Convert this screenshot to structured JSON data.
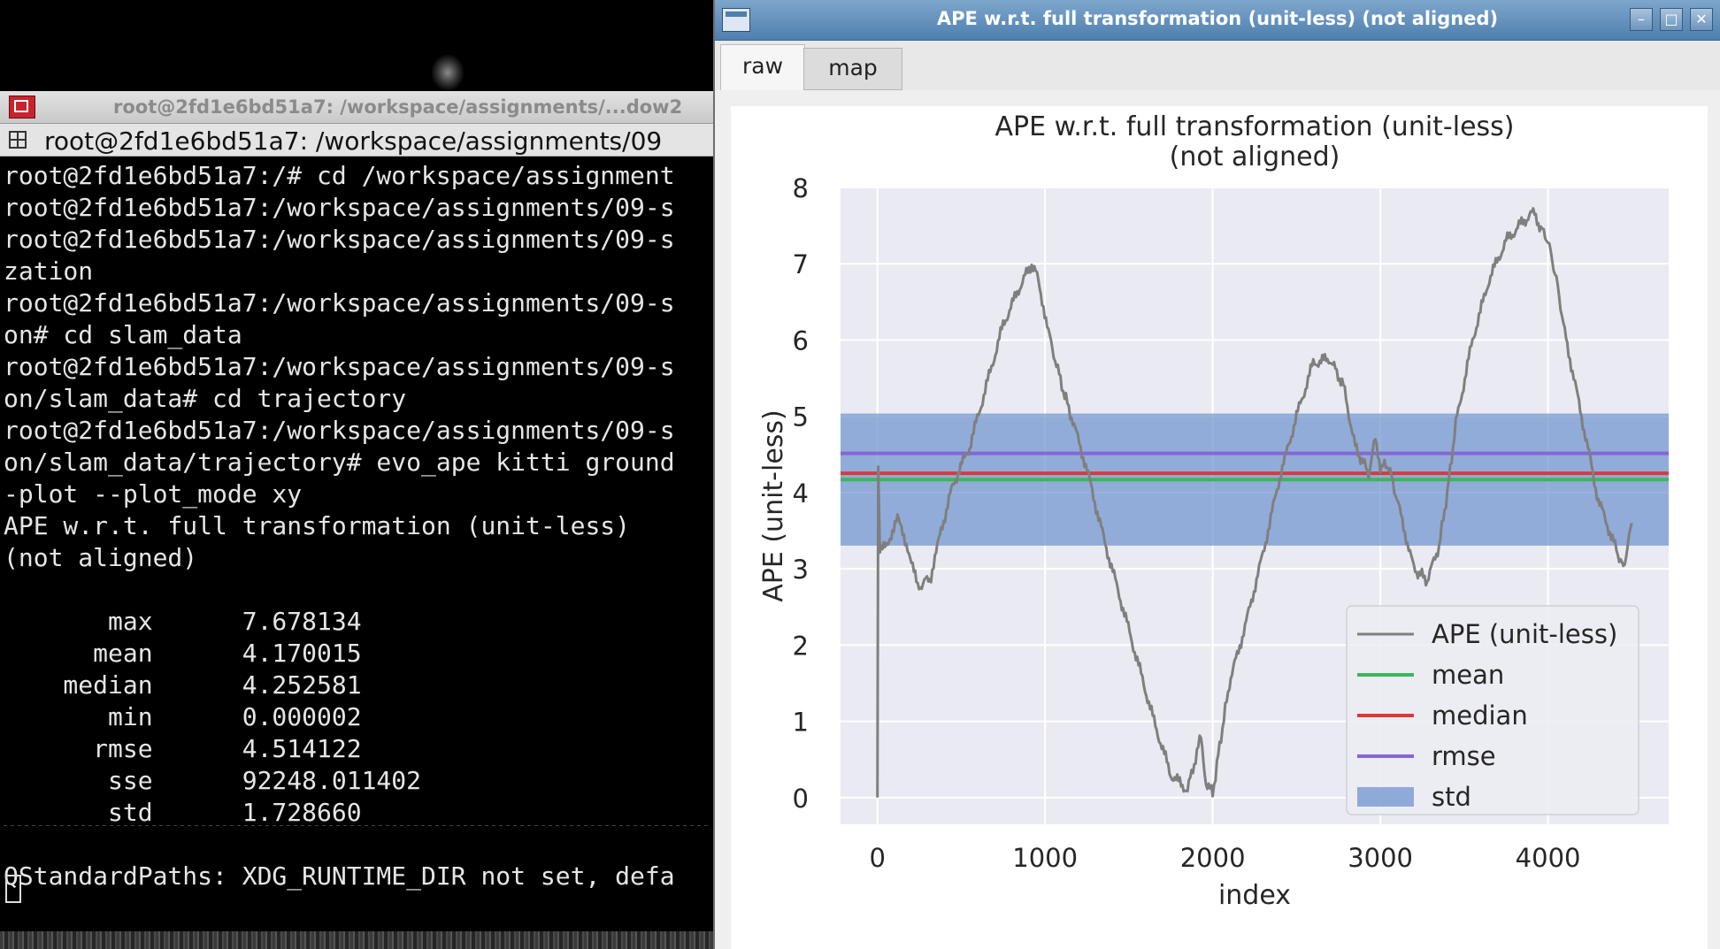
{
  "terminal": {
    "title": "root@2fd1e6bd51a7: /workspace/assignments/...dow2",
    "tab_label": "root@2fd1e6bd51a7: /workspace/assignments/09",
    "lines": [
      "root@2fd1e6bd51a7:/# cd /workspace/assignment",
      "root@2fd1e6bd51a7:/workspace/assignments/09-s",
      "root@2fd1e6bd51a7:/workspace/assignments/09-s",
      "zation",
      "root@2fd1e6bd51a7:/workspace/assignments/09-s",
      "on# cd slam_data",
      "root@2fd1e6bd51a7:/workspace/assignments/09-s",
      "on/slam_data# cd trajectory",
      "root@2fd1e6bd51a7:/workspace/assignments/09-s",
      "on/slam_data/trajectory# evo_ape kitti ground",
      "-plot --plot_mode xy",
      "APE w.r.t. full transformation (unit-less)",
      "(not aligned)",
      "",
      "       max      7.678134",
      "      mean      4.170015",
      "    median      4.252581",
      "       min      0.000002",
      "      rmse      4.514122",
      "       sse      92248.011402",
      "       std      1.728660",
      "",
      "QStandardPaths: XDG_RUNTIME_DIR not set, defa"
    ]
  },
  "plot_window": {
    "title": "APE w.r.t. full transformation (unit-less) (not aligned)",
    "tabs": [
      "raw",
      "map"
    ],
    "active_tab": "raw",
    "buttons": {
      "minimize": "–",
      "maximize": "□",
      "close": "✕"
    }
  },
  "chart_data": {
    "type": "line",
    "title": "APE w.r.t. full transformation (unit-less)\n(not aligned)",
    "title_lines": [
      "APE w.r.t. full transformation (unit-less)",
      "(not aligned)"
    ],
    "xlabel": "index",
    "ylabel": "APE (unit-less)",
    "xlim": [
      -220,
      4720
    ],
    "ylim": [
      -0.35,
      8.0
    ],
    "xticks": [
      0,
      1000,
      2000,
      3000,
      4000
    ],
    "yticks": [
      0,
      1,
      2,
      3,
      4,
      5,
      6,
      7,
      8
    ],
    "grid": true,
    "legend_position": "bottom-right",
    "colors": {
      "ape": "#7f7f7f",
      "mean": "#3cb65b",
      "median": "#d93a3a",
      "rmse": "#8467d7",
      "std": "#7094cf",
      "plot_bg": "#eaeaf2",
      "grid": "#ffffff"
    },
    "series": [
      {
        "name": "APE (unit-less)",
        "x": [
          0,
          5,
          15,
          60,
          120,
          180,
          240,
          320,
          380,
          450,
          550,
          650,
          750,
          850,
          920,
          960,
          1020,
          1100,
          1150,
          1250,
          1350,
          1450,
          1550,
          1650,
          1750,
          1850,
          1930,
          1960,
          2000,
          2050,
          2100,
          2200,
          2300,
          2400,
          2500,
          2600,
          2700,
          2780,
          2850,
          2930,
          2970,
          3000,
          3050,
          3100,
          3200,
          3280,
          3350,
          3400,
          3450,
          3550,
          3650,
          3750,
          3850,
          3920,
          3950,
          4000,
          4050,
          4100,
          4200,
          4300,
          4400,
          4450,
          4500
        ],
        "y": [
          0.0,
          4.35,
          3.2,
          3.35,
          3.65,
          3.3,
          2.75,
          2.9,
          3.5,
          4.1,
          4.6,
          5.4,
          6.2,
          6.7,
          7.0,
          6.8,
          6.1,
          5.4,
          5.05,
          4.3,
          3.4,
          2.6,
          1.8,
          1.0,
          0.3,
          0.1,
          0.8,
          0.2,
          0.05,
          0.8,
          1.5,
          2.3,
          3.2,
          4.2,
          5.0,
          5.7,
          5.75,
          5.4,
          4.6,
          4.25,
          4.7,
          4.35,
          4.35,
          3.9,
          3.0,
          2.85,
          3.3,
          4.0,
          4.9,
          6.0,
          6.8,
          7.3,
          7.55,
          7.68,
          7.5,
          7.3,
          6.8,
          6.1,
          5.0,
          3.9,
          3.3,
          3.0,
          3.6
        ]
      },
      {
        "name": "mean",
        "value": 4.170015
      },
      {
        "name": "median",
        "value": 4.252581
      },
      {
        "name": "rmse",
        "value": 4.514122
      },
      {
        "name": "std",
        "band": [
          3.304,
          5.036
        ]
      }
    ]
  }
}
